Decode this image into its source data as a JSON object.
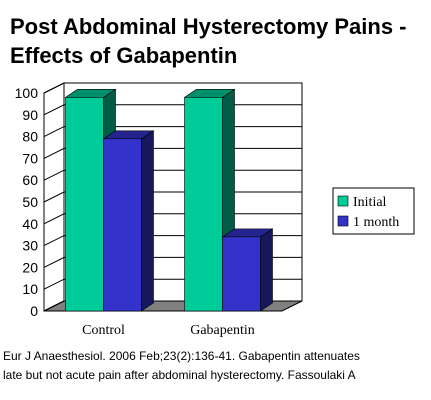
{
  "title": {
    "line1": "Post Abdominal Hysterectomy Pains -",
    "line2": "Effects of Gabapentin"
  },
  "chart_data": {
    "type": "bar",
    "style": "3d",
    "categories": [
      "Control",
      "Gabapentin"
    ],
    "series": [
      {
        "name": "Initial",
        "values": [
          98,
          98
        ],
        "color": "#00cc99"
      },
      {
        "name": "1 month",
        "values": [
          79,
          34
        ],
        "color": "#3333cc"
      }
    ],
    "ylim": [
      0,
      100
    ],
    "yticks": [
      "0",
      "10",
      "20",
      "30",
      "40",
      "50",
      "60",
      "70",
      "80",
      "90",
      "100"
    ],
    "grid": true,
    "legend_position": "right"
  },
  "citation": {
    "line1": "Eur J Anaesthesiol. 2006 Feb;23(2):136-41. Gabapentin attenuates",
    "line2": "late but not acute pain after abdominal hysterectomy. Fassoulaki A"
  }
}
